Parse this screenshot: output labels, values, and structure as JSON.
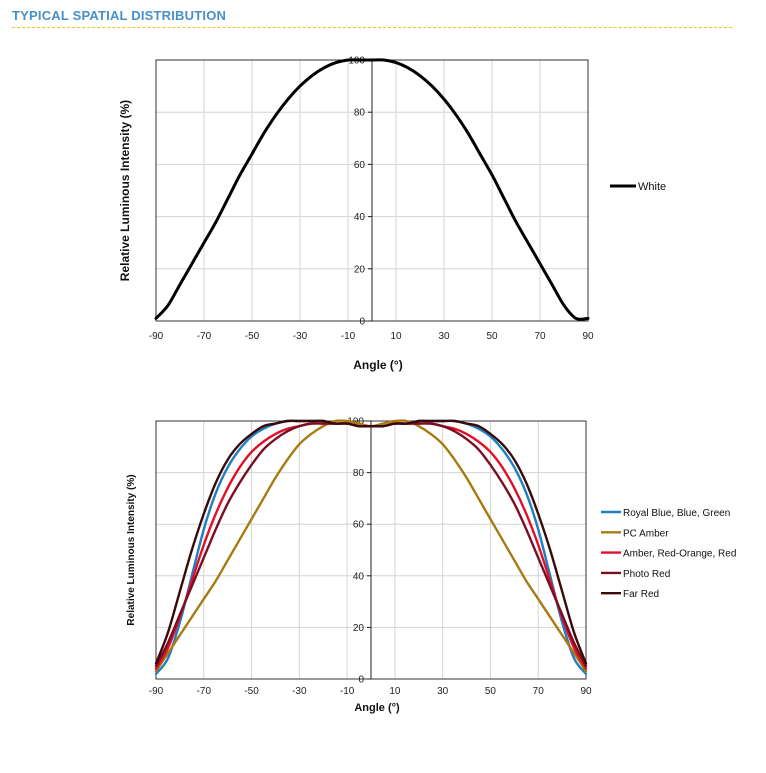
{
  "page": {
    "title": "TYPICAL SPATIAL DISTRIBUTION",
    "title_color": "#4a90c8",
    "rule_color": "#f0c419"
  },
  "chart_data": [
    {
      "type": "line",
      "title": "",
      "xlabel": "Angle (°)",
      "ylabel": "Relative Luminous Intensity (%)",
      "xlim": [
        -90,
        90
      ],
      "ylim": [
        0,
        100
      ],
      "x_ticks": [
        -90,
        -70,
        -50,
        -30,
        -10,
        10,
        30,
        50,
        70,
        90
      ],
      "y_ticks": [
        0,
        20,
        40,
        60,
        80,
        100
      ],
      "grid": true,
      "legend_position": "right",
      "x": [
        -90,
        -85,
        -80,
        -75,
        -70,
        -65,
        -60,
        -55,
        -50,
        -45,
        -40,
        -35,
        -30,
        -25,
        -20,
        -15,
        -10,
        -5,
        0,
        5,
        10,
        15,
        20,
        25,
        30,
        35,
        40,
        45,
        50,
        55,
        60,
        65,
        70,
        75,
        80,
        85,
        90
      ],
      "series": [
        {
          "name": "White",
          "color": "#000000",
          "values": [
            1,
            6,
            14,
            22,
            30,
            38,
            47,
            56,
            64,
            72,
            79,
            85,
            90,
            94,
            97,
            99,
            100,
            100,
            100,
            100,
            99,
            97,
            94,
            90,
            85,
            79,
            72,
            64,
            56,
            47,
            38,
            30,
            22,
            14,
            6,
            1,
            1
          ]
        }
      ]
    },
    {
      "type": "line",
      "title": "",
      "xlabel": "Angle (°)",
      "ylabel": "Relative Luminous Intensity (%)",
      "xlim": [
        -90,
        90
      ],
      "ylim": [
        0,
        100
      ],
      "x_ticks": [
        -90,
        -70,
        -50,
        -30,
        -10,
        10,
        30,
        50,
        70,
        90
      ],
      "y_ticks": [
        0,
        20,
        40,
        60,
        80,
        100
      ],
      "grid": true,
      "legend_position": "right",
      "x": [
        -90,
        -85,
        -80,
        -75,
        -70,
        -65,
        -60,
        -55,
        -50,
        -45,
        -40,
        -35,
        -30,
        -25,
        -20,
        -15,
        -10,
        -5,
        0,
        5,
        10,
        15,
        20,
        25,
        30,
        35,
        40,
        45,
        50,
        55,
        60,
        65,
        70,
        75,
        80,
        85,
        90
      ],
      "series": [
        {
          "name": "Royal Blue, Blue, Green",
          "color": "#1f7fc0",
          "values": [
            2,
            8,
            22,
            40,
            58,
            72,
            82,
            89,
            94,
            97,
            99,
            100,
            100,
            100,
            100,
            99,
            99,
            98,
            98,
            98,
            99,
            99,
            100,
            100,
            100,
            100,
            99,
            97,
            94,
            89,
            82,
            72,
            58,
            40,
            22,
            8,
            2
          ]
        },
        {
          "name": "PC Amber",
          "color": "#a87a10",
          "values": [
            3,
            10,
            17,
            24,
            31,
            38,
            46,
            54,
            62,
            70,
            78,
            85,
            91,
            95,
            98,
            100,
            100,
            99,
            98,
            99,
            100,
            100,
            98,
            95,
            91,
            85,
            78,
            70,
            62,
            54,
            46,
            38,
            31,
            24,
            17,
            10,
            3
          ]
        },
        {
          "name": "Amber, Red-Orange, Red",
          "color": "#e0102a",
          "values": [
            4,
            12,
            24,
            38,
            52,
            64,
            74,
            82,
            88,
            92,
            95,
            97,
            98,
            99,
            99,
            99,
            99,
            98,
            98,
            98,
            99,
            99,
            99,
            99,
            98,
            97,
            95,
            92,
            88,
            82,
            74,
            64,
            52,
            38,
            24,
            12,
            4
          ]
        },
        {
          "name": "Photo Red",
          "color": "#7a0f23",
          "values": [
            5,
            14,
            25,
            36,
            47,
            58,
            68,
            76,
            83,
            89,
            93,
            96,
            98,
            99,
            99,
            99,
            99,
            98,
            98,
            98,
            99,
            99,
            99,
            99,
            98,
            96,
            93,
            89,
            83,
            76,
            68,
            58,
            47,
            36,
            25,
            14,
            5
          ]
        },
        {
          "name": "Far Red",
          "color": "#3a0a0a",
          "values": [
            6,
            18,
            34,
            50,
            64,
            76,
            85,
            91,
            95,
            98,
            99,
            100,
            100,
            100,
            100,
            99,
            99,
            98,
            98,
            98,
            99,
            99,
            100,
            100,
            100,
            100,
            99,
            98,
            95,
            91,
            85,
            76,
            64,
            50,
            34,
            18,
            6
          ]
        }
      ]
    }
  ]
}
